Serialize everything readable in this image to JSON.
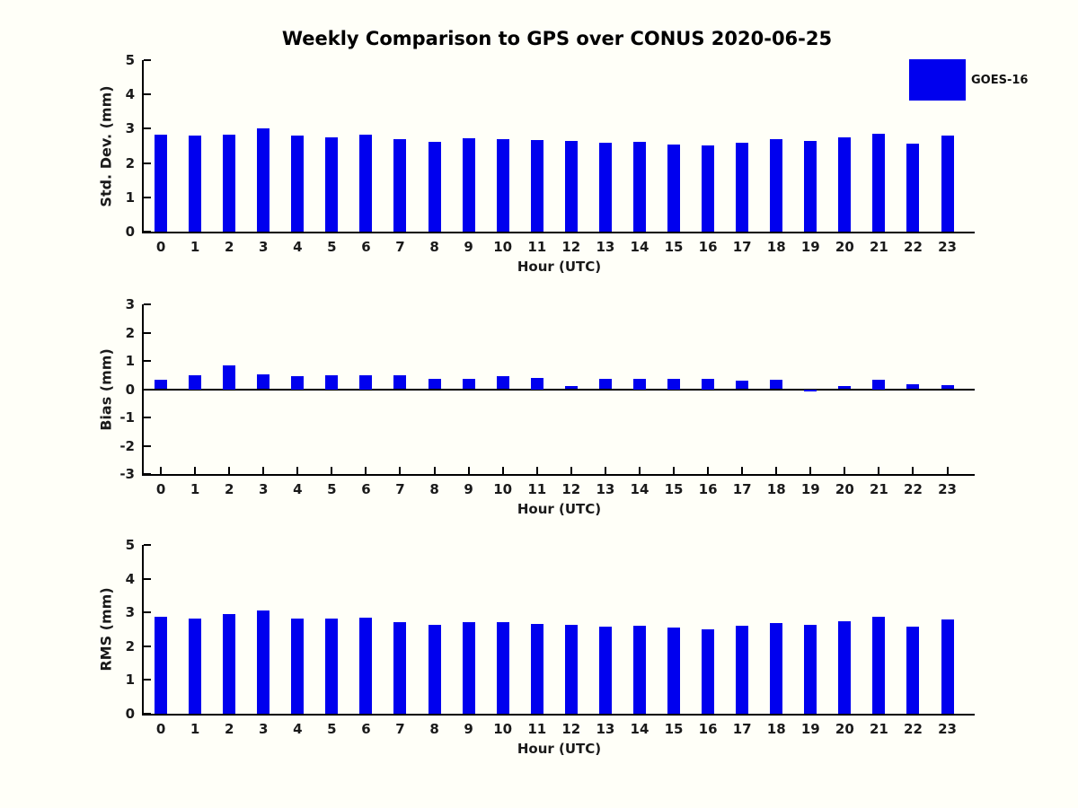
{
  "title": "Weekly Comparison to GPS over CONUS 2020-06-25",
  "legend": {
    "label": "GOES-16",
    "position": "top-right"
  },
  "colors": {
    "bar": "#0000EE",
    "axis": "#000000",
    "text": "#1a1a1a",
    "background": "#FFFFF8"
  },
  "chart_data": [
    {
      "type": "bar",
      "title": "",
      "xlabel": "Hour (UTC)",
      "ylabel": "Std. Dev. (mm)",
      "categories": [
        "0",
        "1",
        "2",
        "3",
        "4",
        "5",
        "6",
        "7",
        "8",
        "9",
        "10",
        "11",
        "12",
        "13",
        "14",
        "15",
        "16",
        "17",
        "18",
        "19",
        "20",
        "21",
        "22",
        "23"
      ],
      "ylim": [
        0,
        5
      ],
      "yticks": [
        0,
        1,
        2,
        3,
        4,
        5
      ],
      "grid": false,
      "legend_position": "top-right",
      "series": [
        {
          "name": "GOES-16",
          "values": [
            2.84,
            2.79,
            2.84,
            3.0,
            2.79,
            2.76,
            2.82,
            2.7,
            2.63,
            2.72,
            2.7,
            2.66,
            2.64,
            2.58,
            2.61,
            2.55,
            2.52,
            2.6,
            2.7,
            2.64,
            2.74,
            2.86,
            2.57,
            2.79
          ]
        }
      ]
    },
    {
      "type": "bar",
      "title": "",
      "xlabel": "Hour (UTC)",
      "ylabel": "Bias (mm)",
      "categories": [
        "0",
        "1",
        "2",
        "3",
        "4",
        "5",
        "6",
        "7",
        "8",
        "9",
        "10",
        "11",
        "12",
        "13",
        "14",
        "15",
        "16",
        "17",
        "18",
        "19",
        "20",
        "21",
        "22",
        "23"
      ],
      "ylim": [
        -3,
        3
      ],
      "yticks": [
        -3,
        -2,
        -1,
        0,
        1,
        2,
        3
      ],
      "zero_line": true,
      "grid": false,
      "series": [
        {
          "name": "GOES-16",
          "values": [
            0.33,
            0.5,
            0.85,
            0.51,
            0.47,
            0.5,
            0.5,
            0.48,
            0.35,
            0.36,
            0.46,
            0.41,
            0.1,
            0.36,
            0.37,
            0.37,
            0.37,
            0.29,
            0.33,
            -0.05,
            0.11,
            0.34,
            0.17,
            0.14
          ]
        }
      ]
    },
    {
      "type": "bar",
      "title": "",
      "xlabel": "Hour (UTC)",
      "ylabel": "RMS (mm)",
      "categories": [
        "0",
        "1",
        "2",
        "3",
        "4",
        "5",
        "6",
        "7",
        "8",
        "9",
        "10",
        "11",
        "12",
        "13",
        "14",
        "15",
        "16",
        "17",
        "18",
        "19",
        "20",
        "21",
        "22",
        "23"
      ],
      "ylim": [
        0,
        5
      ],
      "yticks": [
        0,
        1,
        2,
        3,
        4,
        5
      ],
      "grid": false,
      "series": [
        {
          "name": "GOES-16",
          "values": [
            2.86,
            2.82,
            2.96,
            3.05,
            2.82,
            2.82,
            2.85,
            2.72,
            2.64,
            2.72,
            2.7,
            2.67,
            2.64,
            2.59,
            2.61,
            2.55,
            2.51,
            2.6,
            2.69,
            2.63,
            2.73,
            2.86,
            2.57,
            2.78
          ]
        }
      ]
    }
  ]
}
